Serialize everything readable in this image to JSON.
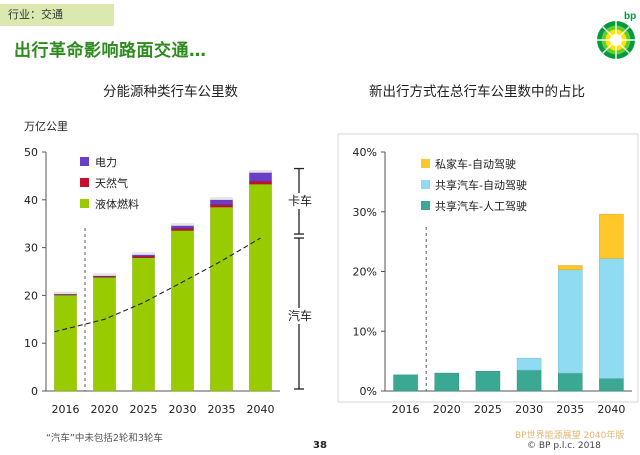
{
  "header": {
    "tag": "行业：交通",
    "title": "出行革命影响路面交通…",
    "logo_text": "bp"
  },
  "footer": {
    "note": "“汽车”中未包括2轮和3轮车",
    "page_number": "38",
    "copyright": "© BP p.l.c. 2018",
    "watermark": "BP世界能源展望 2040年版"
  },
  "colors": {
    "electric": "#6a3fc8",
    "gas": "#c8102e",
    "liquid": "#99cc00",
    "private_auto": "#ffc72c",
    "shared_auto": "#8fdcf2",
    "shared_human": "#3aa893"
  },
  "chart_data": [
    {
      "type": "bar",
      "stacked": true,
      "title": "分能源种类行车公里数",
      "ylabel": "万亿公里",
      "ylim": [
        0,
        50
      ],
      "yticks": [
        "0",
        "10",
        "20",
        "30",
        "40",
        "50"
      ],
      "categories": [
        "2016",
        "2020",
        "2025",
        "2030",
        "2035",
        "2040"
      ],
      "series": [
        {
          "name": "液体燃料",
          "values": [
            20.1,
            23.8,
            27.9,
            33.6,
            38.5,
            43.3
          ]
        },
        {
          "name": "天然气",
          "values": [
            0.1,
            0.2,
            0.3,
            0.4,
            0.5,
            0.6
          ]
        },
        {
          "name": "电力",
          "values": [
            0.1,
            0.1,
            0.3,
            0.6,
            1.0,
            1.8
          ]
        }
      ],
      "legend": [
        "电力",
        "天然气",
        "液体燃料"
      ],
      "split_line": {
        "name": "卡车 / 汽车分界",
        "values": [
          12.4,
          15.0,
          18.5,
          22.8,
          27.2,
          32.0
        ]
      },
      "annotations": [
        "卡车",
        "汽车"
      ]
    },
    {
      "type": "bar",
      "stacked": true,
      "title": "新出行方式在总行车公里数中的占比",
      "ylim": [
        0,
        40
      ],
      "yticks": [
        "0%",
        "10%",
        "20%",
        "30%",
        "40%"
      ],
      "categories": [
        "2016",
        "2020",
        "2025",
        "2030",
        "2035",
        "2040"
      ],
      "series": [
        {
          "name": "共享汽车-人工驾驶",
          "values": [
            2.7,
            3.0,
            3.3,
            3.5,
            3.0,
            2.1
          ]
        },
        {
          "name": "共享汽车-自动驾驶",
          "values": [
            0,
            0,
            0,
            2.0,
            17.3,
            20.1
          ]
        },
        {
          "name": "私家车-自动驾驶",
          "values": [
            0,
            0,
            0,
            0,
            0.7,
            7.4
          ]
        }
      ],
      "legend": [
        "私家车-自动驾驶",
        "共享汽车-自动驾驶",
        "共享汽车-人工驾驶"
      ]
    }
  ]
}
